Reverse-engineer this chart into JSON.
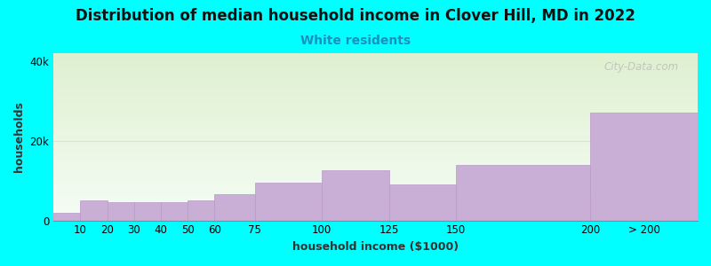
{
  "title": "Distribution of median household income in Clover Hill, MD in 2022",
  "subtitle": "White residents",
  "xlabel": "household income ($1000)",
  "ylabel": "households",
  "background_color": "#00FFFF",
  "plot_bg_top": "#dff0d0",
  "plot_bg_bottom": "#f5fdf5",
  "bar_color": "#c9aed6",
  "bar_edge_color": "#b89ac8",
  "watermark": "City-Data.com",
  "categories": [
    "10",
    "20",
    "30",
    "40",
    "50",
    "60",
    "75",
    "100",
    "125",
    "150",
    "200",
    "> 200"
  ],
  "bin_lefts": [
    0,
    10,
    20,
    30,
    40,
    50,
    60,
    75,
    100,
    125,
    150,
    200
  ],
  "bin_rights": [
    10,
    20,
    30,
    40,
    50,
    60,
    75,
    100,
    125,
    150,
    200,
    240
  ],
  "values": [
    2000,
    5000,
    4500,
    4500,
    4500,
    5000,
    6500,
    9500,
    12500,
    9000,
    14000,
    27000
  ],
  "ylim": [
    0,
    42000
  ],
  "yticks": [
    0,
    20000,
    40000
  ],
  "ytick_labels": [
    "0",
    "20k",
    "40k"
  ],
  "title_fontsize": 12,
  "subtitle_fontsize": 10,
  "axis_label_fontsize": 9,
  "tick_fontsize": 8.5
}
